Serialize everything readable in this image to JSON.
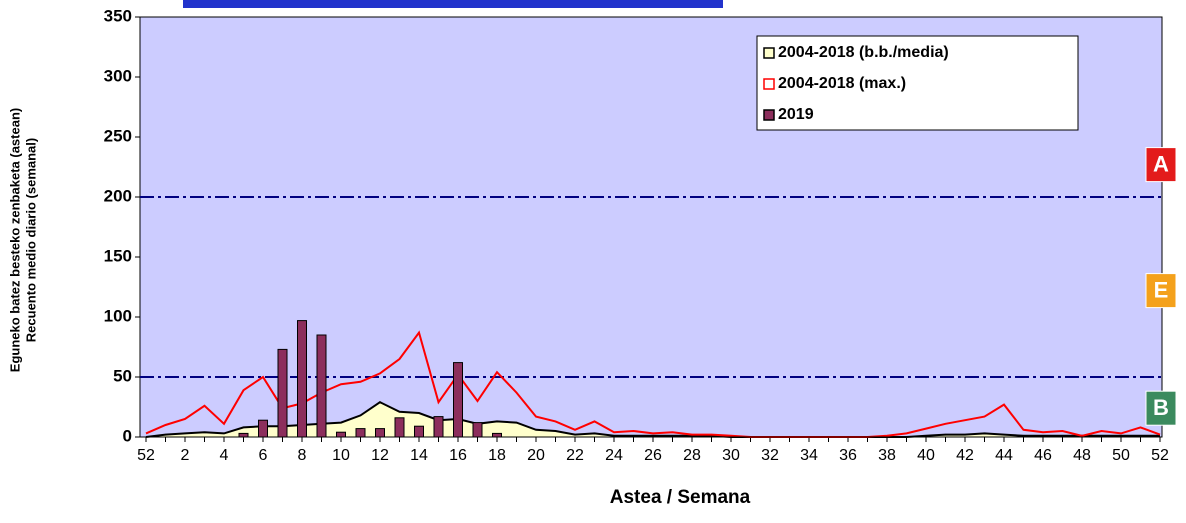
{
  "chart_data": {
    "type": "combo",
    "y_label": [
      "Eguneko batez besteko zenbaketa (astean)",
      "Recuento medio diario (semanal)"
    ],
    "x_label": "Astea / Semana",
    "categories": [
      "52",
      null,
      "2",
      null,
      "4",
      null,
      "6",
      null,
      "8",
      null,
      "10",
      null,
      "12",
      null,
      "14",
      null,
      "16",
      null,
      "18",
      null,
      "20",
      null,
      "22",
      null,
      "24",
      null,
      "26",
      null,
      "28",
      null,
      "30",
      null,
      "32",
      null,
      "34",
      null,
      "36",
      null,
      "38",
      null,
      "40",
      null,
      "42",
      null,
      "44",
      null,
      "46",
      null,
      "48",
      null,
      "50",
      null,
      "52"
    ],
    "ylim": [
      0,
      350
    ],
    "yticks": [
      0,
      50,
      100,
      150,
      200,
      250,
      300,
      350
    ],
    "thresholds": [
      200,
      50
    ],
    "zones": [
      {
        "label": "A",
        "color": "#e31b1b",
        "value": 227
      },
      {
        "label": "E",
        "color": "#f4a11c",
        "value": 122
      },
      {
        "label": "B",
        "color": "#3b8a5e",
        "value": 24
      }
    ],
    "series": [
      {
        "name": "2004-2018 (b.b./media)",
        "kind": "area",
        "color": "#000000",
        "fill": "#ffffcc",
        "values": [
          0,
          2,
          3,
          4,
          3,
          8,
          9,
          9,
          10,
          11,
          12,
          18,
          29,
          21,
          20,
          14,
          15,
          11,
          13,
          12,
          6,
          5,
          2,
          3,
          1,
          1,
          1,
          1,
          1,
          1,
          0,
          0,
          0,
          0,
          0,
          0,
          0,
          0,
          0,
          0,
          1,
          2,
          2,
          3,
          2,
          1,
          1,
          1,
          1,
          1,
          1,
          1,
          1
        ]
      },
      {
        "name": "2004-2018 (max.)",
        "kind": "line",
        "color": "#ff0000",
        "values": [
          3,
          10,
          15,
          26,
          11,
          39,
          50,
          24,
          28,
          37,
          44,
          46,
          53,
          65,
          87,
          29,
          52,
          30,
          54,
          37,
          17,
          13,
          6,
          13,
          4,
          5,
          3,
          4,
          2,
          2,
          1,
          0,
          0,
          0,
          0,
          0,
          0,
          0,
          1,
          3,
          7,
          11,
          14,
          17,
          27,
          6,
          4,
          5,
          1,
          5,
          3,
          8,
          2
        ]
      },
      {
        "name": "2019",
        "kind": "bar",
        "color": "#8c2e5c",
        "values": [
          0,
          0,
          0,
          0,
          0,
          3,
          14,
          73,
          97,
          85,
          4,
          7,
          7,
          16,
          9,
          17,
          62,
          12,
          3,
          0,
          0,
          0,
          0,
          0,
          0,
          0,
          0,
          0,
          0,
          0,
          0,
          0,
          0,
          0,
          0,
          0,
          0,
          0,
          0,
          0,
          0,
          0,
          0,
          0,
          0,
          0,
          0,
          0,
          0,
          0,
          0,
          0,
          0
        ]
      }
    ]
  }
}
